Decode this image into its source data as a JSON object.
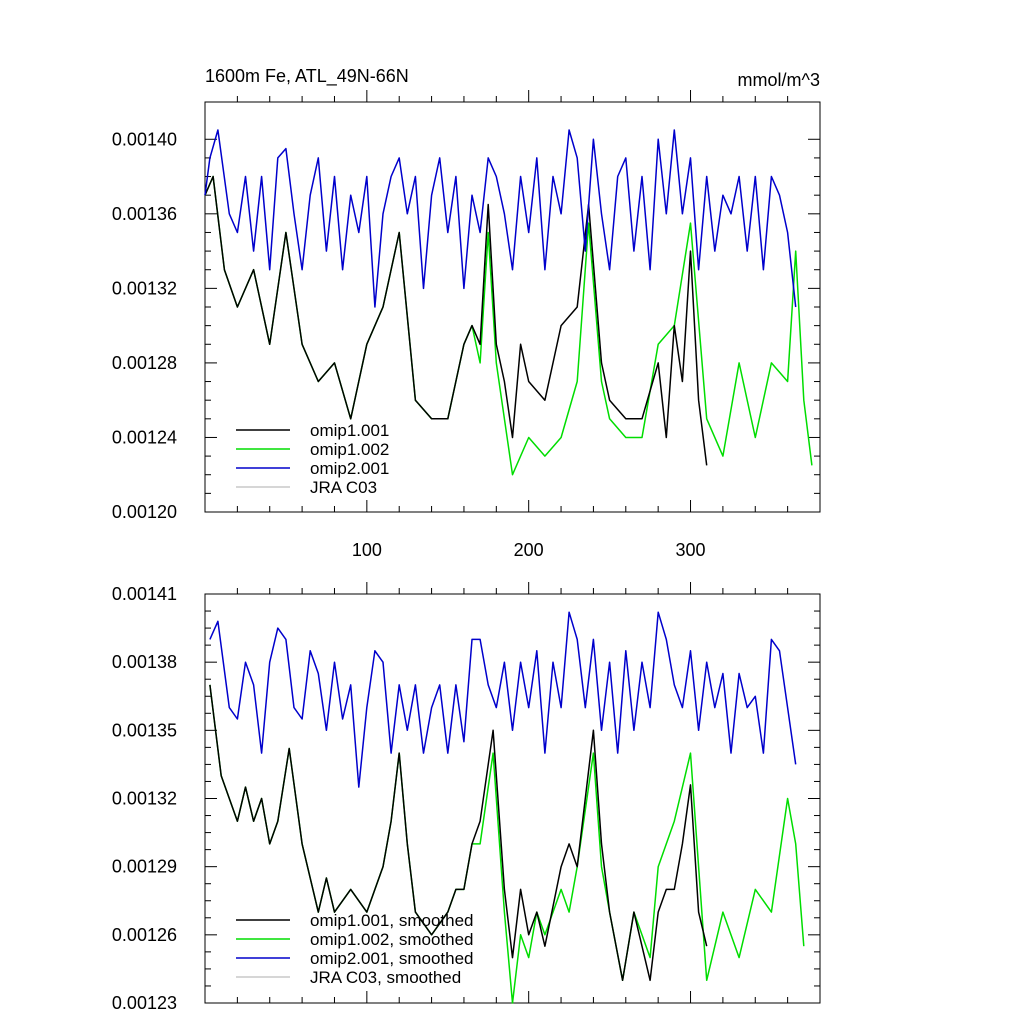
{
  "chart_data": [
    {
      "type": "line",
      "title": "1600m Fe, ATL_49N-66N",
      "units": "mmol/m^3",
      "xlim": [
        0,
        380
      ],
      "ylim": [
        0.0012,
        0.00142
      ],
      "y_ticks": [
        "0.00120",
        "0.00124",
        "0.00128",
        "0.00132",
        "0.00136",
        "0.00140"
      ],
      "y_tick_values": [
        0.0012,
        0.00124,
        0.00128,
        0.00132,
        0.00136,
        0.0014
      ],
      "x_ticks": [
        "100",
        "200",
        "300"
      ],
      "x_tick_values": [
        100,
        200,
        300
      ],
      "series": [
        {
          "name": "omip1.001",
          "color": "#000000",
          "x": [
            0,
            5,
            12,
            20,
            30,
            40,
            50,
            60,
            70,
            80,
            90,
            100,
            110,
            120,
            130,
            140,
            150,
            160,
            165,
            170,
            175,
            180,
            185,
            190,
            195,
            200,
            210,
            220,
            230,
            237,
            245,
            250,
            260,
            270,
            280,
            285,
            290,
            295,
            300,
            305,
            310
          ],
          "values": [
            0.00137,
            0.00138,
            0.00133,
            0.00131,
            0.00133,
            0.00129,
            0.00135,
            0.00129,
            0.00127,
            0.00128,
            0.00125,
            0.00129,
            0.00131,
            0.00135,
            0.00126,
            0.00125,
            0.00125,
            0.00129,
            0.0013,
            0.00129,
            0.001365,
            0.00129,
            0.00127,
            0.00124,
            0.00129,
            0.00127,
            0.00126,
            0.0013,
            0.00131,
            0.001365,
            0.00128,
            0.00126,
            0.00125,
            0.00125,
            0.00128,
            0.00124,
            0.0013,
            0.00127,
            0.00134,
            0.00126,
            0.001225
          ]
        },
        {
          "name": "omip1.002",
          "color": "#00dd00",
          "x": [
            0,
            5,
            12,
            20,
            30,
            40,
            50,
            60,
            70,
            80,
            90,
            100,
            110,
            120,
            130,
            140,
            150,
            160,
            165,
            170,
            175,
            180,
            185,
            190,
            200,
            210,
            220,
            230,
            237,
            245,
            250,
            260,
            270,
            280,
            290,
            300,
            310,
            320,
            330,
            340,
            350,
            360,
            365,
            370,
            375
          ],
          "values": [
            0.00137,
            0.00138,
            0.00133,
            0.00131,
            0.00133,
            0.00129,
            0.00135,
            0.00129,
            0.00127,
            0.00128,
            0.00125,
            0.00129,
            0.00131,
            0.00135,
            0.00126,
            0.00125,
            0.00125,
            0.00129,
            0.0013,
            0.00128,
            0.00135,
            0.00128,
            0.00125,
            0.00122,
            0.00124,
            0.00123,
            0.00124,
            0.00127,
            0.001355,
            0.00127,
            0.00125,
            0.00124,
            0.00124,
            0.00129,
            0.0013,
            0.001355,
            0.00125,
            0.00123,
            0.00128,
            0.00124,
            0.00128,
            0.00127,
            0.00134,
            0.00126,
            0.001225
          ]
        },
        {
          "name": "omip2.001",
          "color": "#0000cc",
          "x": [
            0,
            3,
            8,
            15,
            20,
            25,
            30,
            35,
            40,
            45,
            50,
            55,
            60,
            65,
            70,
            75,
            80,
            85,
            90,
            95,
            100,
            105,
            110,
            115,
            120,
            125,
            130,
            135,
            140,
            145,
            150,
            155,
            160,
            165,
            170,
            175,
            180,
            185,
            190,
            195,
            200,
            205,
            210,
            215,
            220,
            225,
            230,
            235,
            240,
            245,
            250,
            255,
            260,
            265,
            270,
            275,
            280,
            285,
            290,
            295,
            300,
            305,
            310,
            315,
            320,
            325,
            330,
            335,
            340,
            345,
            350,
            355,
            360,
            365
          ],
          "values": [
            0.00137,
            0.00139,
            0.001405,
            0.00136,
            0.00135,
            0.00138,
            0.00134,
            0.00138,
            0.00133,
            0.00139,
            0.001395,
            0.00136,
            0.00133,
            0.00137,
            0.00139,
            0.00134,
            0.00138,
            0.00133,
            0.00137,
            0.00135,
            0.00138,
            0.00131,
            0.00136,
            0.00138,
            0.00139,
            0.00136,
            0.00138,
            0.00132,
            0.00137,
            0.00139,
            0.00135,
            0.00138,
            0.00132,
            0.00137,
            0.00135,
            0.00139,
            0.00138,
            0.00136,
            0.00133,
            0.00138,
            0.00135,
            0.00139,
            0.00133,
            0.00138,
            0.00136,
            0.001405,
            0.00139,
            0.00134,
            0.0014,
            0.00136,
            0.00133,
            0.00138,
            0.00139,
            0.00134,
            0.00138,
            0.00133,
            0.0014,
            0.00136,
            0.001405,
            0.00136,
            0.00139,
            0.00133,
            0.00138,
            0.00134,
            0.00137,
            0.00136,
            0.00138,
            0.00134,
            0.00138,
            0.00133,
            0.00138,
            0.00137,
            0.00135,
            0.00131
          ]
        },
        {
          "name": "JRA C03",
          "color": "#c8c8c8",
          "x": [],
          "values": []
        }
      ]
    },
    {
      "type": "line",
      "title": "",
      "xlim": [
        0,
        380
      ],
      "ylim": [
        0.00123,
        0.00141
      ],
      "y_ticks": [
        "0.00123",
        "0.00126",
        "0.00129",
        "0.00132",
        "0.00135",
        "0.00138",
        "0.00141"
      ],
      "y_tick_values": [
        0.00123,
        0.00126,
        0.00129,
        0.00132,
        0.00135,
        0.00138,
        0.00141
      ],
      "x_ticks": [
        "100",
        "200",
        "300"
      ],
      "x_tick_values": [
        100,
        200,
        300
      ],
      "series": [
        {
          "name": "omip1.001, smoothed",
          "color": "#000000",
          "x": [
            3,
            10,
            20,
            25,
            30,
            35,
            40,
            45,
            52,
            60,
            70,
            75,
            80,
            90,
            100,
            105,
            110,
            115,
            120,
            125,
            130,
            140,
            150,
            155,
            160,
            165,
            170,
            178,
            185,
            190,
            195,
            200,
            205,
            210,
            220,
            225,
            230,
            235,
            240,
            245,
            250,
            258,
            265,
            275,
            280,
            285,
            290,
            295,
            300,
            305,
            310
          ],
          "values": [
            0.00137,
            0.00133,
            0.00131,
            0.001325,
            0.00131,
            0.00132,
            0.0013,
            0.00131,
            0.001342,
            0.0013,
            0.00127,
            0.001285,
            0.00127,
            0.00128,
            0.00127,
            0.00128,
            0.00129,
            0.00131,
            0.00134,
            0.0013,
            0.00127,
            0.00126,
            0.00127,
            0.00128,
            0.00128,
            0.0013,
            0.00131,
            0.00135,
            0.00128,
            0.00125,
            0.00128,
            0.00126,
            0.00127,
            0.001255,
            0.00129,
            0.0013,
            0.00129,
            0.00132,
            0.00135,
            0.0013,
            0.00127,
            0.00124,
            0.00127,
            0.00124,
            0.00127,
            0.00128,
            0.00128,
            0.0013,
            0.001326,
            0.00127,
            0.001255
          ]
        },
        {
          "name": "omip1.002, smoothed",
          "color": "#00dd00",
          "x": [
            3,
            10,
            20,
            25,
            30,
            35,
            40,
            45,
            52,
            60,
            70,
            75,
            80,
            90,
            100,
            105,
            110,
            115,
            120,
            125,
            130,
            140,
            150,
            155,
            160,
            165,
            170,
            178,
            185,
            190,
            195,
            200,
            205,
            210,
            215,
            220,
            225,
            230,
            240,
            245,
            250,
            258,
            265,
            275,
            280,
            290,
            300,
            310,
            320,
            330,
            340,
            350,
            360,
            365,
            370
          ],
          "values": [
            0.00137,
            0.00133,
            0.00131,
            0.001325,
            0.00131,
            0.00132,
            0.0013,
            0.00131,
            0.001342,
            0.0013,
            0.00127,
            0.001285,
            0.00127,
            0.00128,
            0.00127,
            0.00128,
            0.00129,
            0.00131,
            0.00134,
            0.0013,
            0.00127,
            0.00126,
            0.00127,
            0.00128,
            0.00128,
            0.0013,
            0.0013,
            0.00134,
            0.00127,
            0.00123,
            0.00126,
            0.00125,
            0.00127,
            0.00126,
            0.00127,
            0.00128,
            0.00127,
            0.00129,
            0.00134,
            0.00129,
            0.00127,
            0.00124,
            0.00127,
            0.00125,
            0.00129,
            0.00131,
            0.00134,
            0.00124,
            0.00127,
            0.00125,
            0.00128,
            0.00127,
            0.00132,
            0.0013,
            0.001255
          ]
        },
        {
          "name": "omip2.001, smoothed",
          "color": "#0000cc",
          "x": [
            3,
            8,
            15,
            20,
            25,
            30,
            35,
            40,
            45,
            50,
            55,
            60,
            65,
            70,
            75,
            80,
            85,
            90,
            95,
            100,
            105,
            110,
            115,
            120,
            125,
            130,
            135,
            140,
            145,
            150,
            155,
            160,
            165,
            170,
            175,
            180,
            185,
            190,
            195,
            200,
            205,
            210,
            215,
            220,
            225,
            230,
            235,
            240,
            245,
            250,
            255,
            260,
            265,
            270,
            275,
            280,
            285,
            290,
            295,
            300,
            305,
            310,
            315,
            320,
            325,
            330,
            335,
            340,
            345,
            350,
            355,
            360,
            365
          ],
          "values": [
            0.00139,
            0.001398,
            0.00136,
            0.001355,
            0.00138,
            0.00137,
            0.00134,
            0.00138,
            0.001395,
            0.00139,
            0.00136,
            0.001355,
            0.001385,
            0.001375,
            0.00135,
            0.00138,
            0.001355,
            0.00137,
            0.001325,
            0.00136,
            0.001385,
            0.00138,
            0.00134,
            0.00137,
            0.00135,
            0.00137,
            0.00134,
            0.00136,
            0.00137,
            0.00134,
            0.00137,
            0.001345,
            0.00139,
            0.00139,
            0.00137,
            0.00136,
            0.00138,
            0.00135,
            0.00138,
            0.00136,
            0.001385,
            0.00134,
            0.00138,
            0.00136,
            0.001402,
            0.00139,
            0.00136,
            0.00139,
            0.00135,
            0.00138,
            0.00134,
            0.001385,
            0.00135,
            0.00138,
            0.00136,
            0.001402,
            0.00139,
            0.00137,
            0.00136,
            0.001385,
            0.00135,
            0.00138,
            0.00136,
            0.001375,
            0.00134,
            0.001375,
            0.00136,
            0.001365,
            0.00134,
            0.00139,
            0.001385,
            0.00136,
            0.001335
          ]
        },
        {
          "name": "JRA C03, smoothed",
          "color": "#c8c8c8",
          "x": [],
          "values": []
        }
      ]
    }
  ]
}
